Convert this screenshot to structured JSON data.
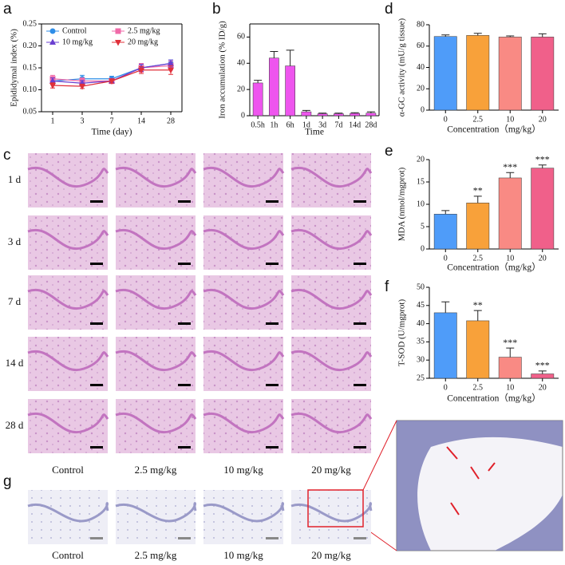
{
  "panel_letters": [
    "a",
    "b",
    "c",
    "d",
    "e",
    "f",
    "g"
  ],
  "histology": {
    "rows": [
      "1 d",
      "3 d",
      "7 d",
      "14 d",
      "28 d"
    ],
    "columns": [
      "Control",
      "2.5 mg/kg",
      "10 mg/kg",
      "20 mg/kg"
    ]
  },
  "prussian_blue": {
    "columns": [
      "Control",
      "2.5 mg/kg",
      "10 mg/kg",
      "20 mg/kg"
    ]
  },
  "chart_data": [
    {
      "type": "line",
      "box": true,
      "xlabel": "Time (day)",
      "ylabel": "Epididymal index (%)",
      "categories": [
        "1",
        "3",
        "7",
        "14",
        "28"
      ],
      "ylim": [
        0.05,
        0.25
      ],
      "yticks": [
        0.05,
        {
          "value": 0.1,
          "label": "0.10"
        },
        0.15,
        {
          "value": 0.2,
          "label": "0.20"
        },
        0.25
      ],
      "series": [
        {
          "name": "Control",
          "color": "#2f8ee8",
          "marker": "circle",
          "values": [
            0.12,
            0.125,
            0.125,
            0.15,
            0.16
          ],
          "errors": [
            0.008,
            0.008,
            0.006,
            0.008,
            0.008
          ]
        },
        {
          "name": "2.5 mg/kg",
          "color": "#f06aa8",
          "marker": "square",
          "values": [
            0.125,
            0.12,
            0.12,
            0.15,
            0.155
          ],
          "errors": [
            0.008,
            0.007,
            0.006,
            0.01,
            0.01
          ]
        },
        {
          "name": "10 mg/kg",
          "color": "#6a3fd0",
          "marker": "triangle",
          "values": [
            0.12,
            0.115,
            0.12,
            0.15,
            0.16
          ],
          "errors": [
            0.007,
            0.006,
            0.005,
            0.008,
            0.008
          ]
        },
        {
          "name": "20 mg/kg",
          "color": "#e0303a",
          "marker": "triangle-down",
          "values": [
            0.11,
            0.108,
            0.12,
            0.145,
            0.145
          ],
          "errors": [
            0.006,
            0.005,
            0.005,
            0.008,
            0.01
          ]
        }
      ]
    },
    {
      "type": "bar",
      "box": true,
      "xlabel": "Time",
      "ylabel": "Iron accumulation (% ID/g)",
      "categories": [
        "0.5h",
        "1h",
        "6h",
        "1d",
        "3d",
        "7d",
        "14d",
        "28d"
      ],
      "ylim": [
        0,
        70
      ],
      "yticks": [
        0,
        20,
        40,
        60
      ],
      "series": [
        {
          "color": "#ee55ee",
          "values": [
            25,
            44,
            38,
            3,
            1.5,
            1.5,
            1.8,
            2
          ],
          "errors": [
            2,
            5,
            12,
            1,
            0.5,
            0.5,
            0.5,
            1
          ]
        }
      ]
    },
    {
      "type": "bar",
      "box": false,
      "xlabel": "Concentration（mg/kg）",
      "ylabel": "α-GC activity (mU/g tissue)",
      "categories": [
        "0",
        "2.5",
        "10",
        "20"
      ],
      "ylim": [
        0,
        80
      ],
      "yticks": [
        0,
        20,
        40,
        60,
        80
      ],
      "series": [
        {
          "colors": [
            "#4f9cf9",
            "#f8a13a",
            "#f98a84",
            "#f0608a"
          ],
          "values": [
            69,
            70,
            68.5,
            68.5
          ],
          "errors": [
            1.5,
            2,
            1,
            3
          ]
        }
      ]
    },
    {
      "type": "bar",
      "box": false,
      "xlabel": "Concentration（mg/kg）",
      "ylabel": "MDA (nmol/mgprot)",
      "categories": [
        "0",
        "2.5",
        "10",
        "20"
      ],
      "ylim": [
        0,
        20
      ],
      "yticks": [
        0,
        5,
        10,
        15,
        20
      ],
      "series": [
        {
          "colors": [
            "#4f9cf9",
            "#f8a13a",
            "#f98a84",
            "#f0608a"
          ],
          "values": [
            7.8,
            10.3,
            15.9,
            18.1
          ],
          "errors": [
            0.8,
            1.5,
            1.2,
            0.7
          ],
          "significance": [
            null,
            "**",
            "***",
            "***"
          ]
        }
      ]
    },
    {
      "type": "bar",
      "box": false,
      "xlabel": "Concentration（mg/kg）",
      "ylabel": "T-SOD (U/mgprot)",
      "categories": [
        "0",
        "2.5",
        "10",
        "20"
      ],
      "ylim": [
        25,
        50
      ],
      "yticks": [
        25,
        30,
        35,
        40,
        45,
        50
      ],
      "series": [
        {
          "colors": [
            "#4f9cf9",
            "#f8a13a",
            "#f98a84",
            "#f0608a"
          ],
          "values": [
            43,
            40.8,
            30.8,
            26.2
          ],
          "errors": [
            3,
            2.8,
            2.5,
            0.8
          ],
          "significance": [
            null,
            "**",
            "***",
            "***"
          ]
        }
      ]
    }
  ]
}
